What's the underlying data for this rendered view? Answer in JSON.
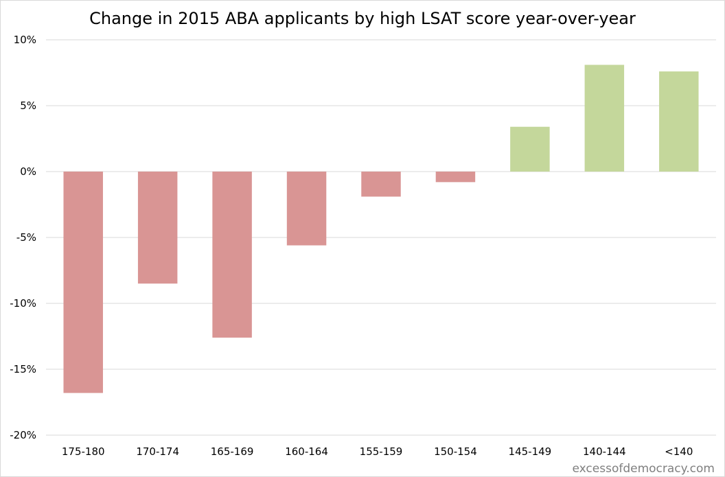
{
  "chart_data": {
    "type": "bar",
    "title": "Change in 2015 ABA applicants by high LSAT score year-over-year",
    "categories": [
      "175-180",
      "170-174",
      "165-169",
      "160-164",
      "155-159",
      "150-154",
      "145-149",
      "140-144",
      "<140"
    ],
    "values": [
      -16.8,
      -8.5,
      -12.6,
      -5.6,
      -1.9,
      -0.8,
      3.4,
      8.1,
      7.6
    ],
    "ylim": [
      -20,
      10
    ],
    "yticks": [
      10,
      5,
      0,
      -5,
      -10,
      -15,
      -20
    ],
    "ytick_labels": [
      "10%",
      "5%",
      "0%",
      "-5%",
      "-10%",
      "-15%",
      "-20%"
    ],
    "grid": true,
    "colors": {
      "positive": "#c4d79b",
      "negative": "#d99594",
      "gridline": "#d9d9d9",
      "watermark": "#7f7f7f"
    },
    "watermark": "excessofdemocracy.com"
  }
}
